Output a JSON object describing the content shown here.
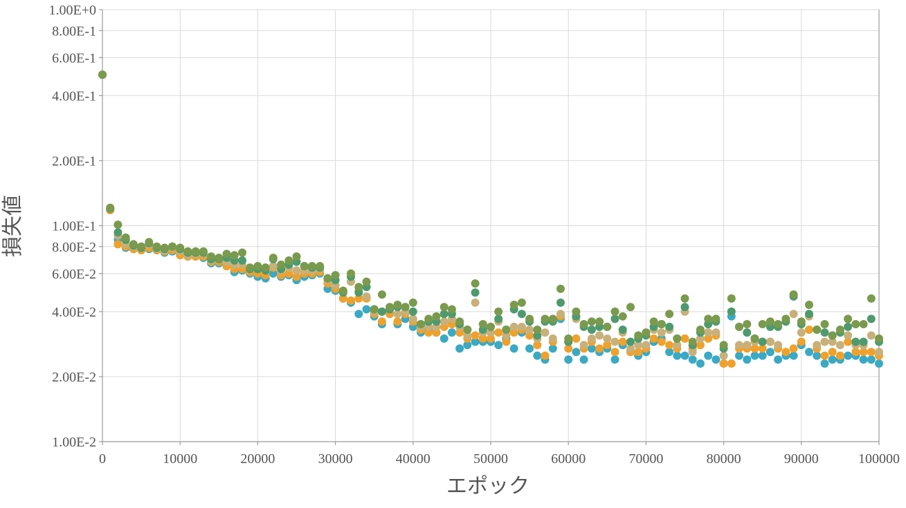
{
  "chart_data": {
    "type": "scatter",
    "title": "",
    "xlabel": "エポック",
    "ylabel": "損失値",
    "x_scale": "linear",
    "y_scale": "log",
    "xlim": [
      0,
      100000
    ],
    "ylim": [
      0.01,
      1.0
    ],
    "grid": true,
    "legend": "none",
    "x_ticks": [
      "0",
      "10000",
      "20000",
      "30000",
      "40000",
      "50000",
      "60000",
      "70000",
      "80000",
      "90000",
      "100000"
    ],
    "y_ticks": [
      "1.00E-2",
      "2.00E-2",
      "4.00E-2",
      "6.00E-2",
      "8.00E-2",
      "1.00E-1",
      "2.00E-1",
      "4.00E-1",
      "6.00E-1",
      "8.00E-1",
      "1.00E+0"
    ],
    "x": [
      0,
      1000,
      2000,
      3000,
      4000,
      5000,
      6000,
      7000,
      8000,
      9000,
      10000,
      11000,
      12000,
      13000,
      14000,
      15000,
      16000,
      17000,
      18000,
      19000,
      20000,
      21000,
      22000,
      23000,
      24000,
      25000,
      26000,
      27000,
      28000,
      29000,
      30000,
      31000,
      32000,
      33000,
      34000,
      35000,
      36000,
      37000,
      38000,
      39000,
      40000,
      41000,
      42000,
      43000,
      44000,
      45000,
      46000,
      47000,
      48000,
      49000,
      50000,
      51000,
      52000,
      53000,
      54000,
      55000,
      56000,
      57000,
      58000,
      59000,
      60000,
      61000,
      62000,
      63000,
      64000,
      65000,
      66000,
      67000,
      68000,
      69000,
      70000,
      71000,
      72000,
      73000,
      74000,
      75000,
      76000,
      77000,
      78000,
      79000,
      80000,
      81000,
      82000,
      83000,
      84000,
      85000,
      86000,
      87000,
      88000,
      89000,
      90000,
      91000,
      92000,
      93000,
      94000,
      95000,
      96000,
      97000,
      98000,
      99000,
      100000
    ],
    "series": [
      {
        "color": "#3aa9c4",
        "values": [
          0.5,
          0.118,
          0.086,
          0.079,
          0.078,
          0.077,
          0.078,
          0.077,
          0.075,
          0.076,
          0.074,
          0.072,
          0.072,
          0.071,
          0.067,
          0.067,
          0.065,
          0.061,
          0.062,
          0.06,
          0.058,
          0.057,
          0.06,
          0.058,
          0.059,
          0.056,
          0.058,
          0.059,
          0.06,
          0.051,
          0.05,
          0.046,
          0.044,
          0.039,
          0.041,
          0.038,
          0.035,
          0.039,
          0.035,
          0.037,
          0.034,
          0.032,
          0.033,
          0.032,
          0.03,
          0.032,
          0.027,
          0.028,
          0.029,
          0.029,
          0.029,
          0.028,
          0.03,
          0.027,
          0.032,
          0.027,
          0.025,
          0.024,
          0.027,
          0.037,
          0.024,
          0.026,
          0.024,
          0.027,
          0.026,
          0.027,
          0.024,
          0.028,
          0.026,
          0.025,
          0.026,
          0.029,
          0.03,
          0.026,
          0.025,
          0.025,
          0.024,
          0.023,
          0.025,
          0.024,
          0.023,
          0.038,
          0.025,
          0.024,
          0.025,
          0.025,
          0.026,
          0.024,
          0.025,
          0.025,
          0.028,
          0.026,
          0.025,
          0.023,
          0.024,
          0.024,
          0.025,
          0.025,
          0.024,
          0.024,
          0.023
        ]
      },
      {
        "color": "#f0a12b",
        "values": [
          0.5,
          0.118,
          0.082,
          0.08,
          0.078,
          0.077,
          0.079,
          0.077,
          0.076,
          0.077,
          0.073,
          0.072,
          0.072,
          0.072,
          0.068,
          0.068,
          0.065,
          0.063,
          0.063,
          0.061,
          0.06,
          0.059,
          0.064,
          0.059,
          0.06,
          0.058,
          0.06,
          0.06,
          0.061,
          0.054,
          0.051,
          0.046,
          0.045,
          0.046,
          0.046,
          0.039,
          0.036,
          0.039,
          0.036,
          0.039,
          0.036,
          0.033,
          0.032,
          0.032,
          0.034,
          0.035,
          0.032,
          0.03,
          0.031,
          0.03,
          0.03,
          0.032,
          0.029,
          0.032,
          0.033,
          0.031,
          0.028,
          0.025,
          0.029,
          0.038,
          0.027,
          0.03,
          0.027,
          0.029,
          0.027,
          0.028,
          0.026,
          0.029,
          0.026,
          0.026,
          0.027,
          0.03,
          0.029,
          0.028,
          0.027,
          0.03,
          0.027,
          0.028,
          0.03,
          0.031,
          0.023,
          0.023,
          0.027,
          0.027,
          0.027,
          0.027,
          0.029,
          0.027,
          0.026,
          0.027,
          0.029,
          0.033,
          0.027,
          0.025,
          0.026,
          0.025,
          0.029,
          0.026,
          0.026,
          0.026,
          0.025
        ]
      },
      {
        "color": "#c8b07a",
        "values": [
          0.5,
          0.12,
          0.09,
          0.082,
          0.08,
          0.079,
          0.082,
          0.078,
          0.077,
          0.079,
          0.076,
          0.073,
          0.074,
          0.074,
          0.069,
          0.07,
          0.068,
          0.066,
          0.066,
          0.063,
          0.063,
          0.062,
          0.065,
          0.062,
          0.064,
          0.062,
          0.062,
          0.062,
          0.063,
          0.056,
          0.053,
          0.049,
          0.055,
          0.05,
          0.047,
          0.04,
          0.04,
          0.041,
          0.039,
          0.04,
          0.037,
          0.034,
          0.034,
          0.034,
          0.036,
          0.037,
          0.034,
          0.031,
          0.044,
          0.032,
          0.032,
          0.036,
          0.031,
          0.034,
          0.034,
          0.033,
          0.03,
          0.032,
          0.03,
          0.039,
          0.029,
          0.037,
          0.028,
          0.03,
          0.031,
          0.03,
          0.029,
          0.032,
          0.027,
          0.028,
          0.028,
          0.033,
          0.032,
          0.033,
          0.028,
          0.04,
          0.026,
          0.03,
          0.032,
          0.032,
          0.025,
          0.04,
          0.028,
          0.028,
          0.029,
          0.029,
          0.029,
          0.028,
          0.036,
          0.039,
          0.032,
          0.038,
          0.028,
          0.029,
          0.029,
          0.028,
          0.031,
          0.028,
          0.028,
          0.031,
          0.026
        ]
      },
      {
        "color": "#4e9a6e",
        "values": [
          0.5,
          0.12,
          0.093,
          0.086,
          0.081,
          0.079,
          0.083,
          0.079,
          0.078,
          0.08,
          0.078,
          0.075,
          0.075,
          0.075,
          0.07,
          0.07,
          0.071,
          0.069,
          0.069,
          0.063,
          0.063,
          0.062,
          0.07,
          0.063,
          0.066,
          0.068,
          0.065,
          0.064,
          0.064,
          0.057,
          0.056,
          0.049,
          0.058,
          0.049,
          0.052,
          0.041,
          0.04,
          0.041,
          0.042,
          0.042,
          0.04,
          0.035,
          0.036,
          0.036,
          0.039,
          0.039,
          0.035,
          0.033,
          0.049,
          0.033,
          0.034,
          0.037,
          0.033,
          0.041,
          0.039,
          0.036,
          0.031,
          0.036,
          0.036,
          0.044,
          0.029,
          0.038,
          0.034,
          0.033,
          0.034,
          0.034,
          0.037,
          0.033,
          0.029,
          0.03,
          0.031,
          0.034,
          0.035,
          0.034,
          0.03,
          0.042,
          0.028,
          0.032,
          0.035,
          0.036,
          0.027,
          0.04,
          0.034,
          0.032,
          0.03,
          0.029,
          0.034,
          0.034,
          0.036,
          0.047,
          0.035,
          0.039,
          0.033,
          0.032,
          0.031,
          0.032,
          0.034,
          0.029,
          0.029,
          0.037,
          0.029
        ]
      },
      {
        "color": "#7a9a4e",
        "values": [
          0.5,
          0.121,
          0.101,
          0.088,
          0.082,
          0.08,
          0.084,
          0.08,
          0.079,
          0.08,
          0.079,
          0.076,
          0.076,
          0.076,
          0.072,
          0.071,
          0.074,
          0.073,
          0.075,
          0.064,
          0.065,
          0.064,
          0.071,
          0.066,
          0.069,
          0.072,
          0.065,
          0.065,
          0.065,
          0.057,
          0.059,
          0.05,
          0.06,
          0.052,
          0.055,
          0.041,
          0.048,
          0.042,
          0.043,
          0.042,
          0.044,
          0.035,
          0.037,
          0.038,
          0.042,
          0.041,
          0.036,
          0.033,
          0.054,
          0.035,
          0.034,
          0.04,
          0.033,
          0.043,
          0.044,
          0.037,
          0.033,
          0.037,
          0.037,
          0.051,
          0.03,
          0.04,
          0.035,
          0.036,
          0.036,
          0.034,
          0.04,
          0.038,
          0.042,
          0.031,
          0.032,
          0.036,
          0.035,
          0.039,
          0.03,
          0.046,
          0.029,
          0.033,
          0.037,
          0.037,
          0.028,
          0.046,
          0.034,
          0.035,
          0.03,
          0.035,
          0.036,
          0.035,
          0.037,
          0.048,
          0.036,
          0.043,
          0.033,
          0.035,
          0.031,
          0.033,
          0.037,
          0.035,
          0.035,
          0.046,
          0.03
        ]
      }
    ]
  }
}
